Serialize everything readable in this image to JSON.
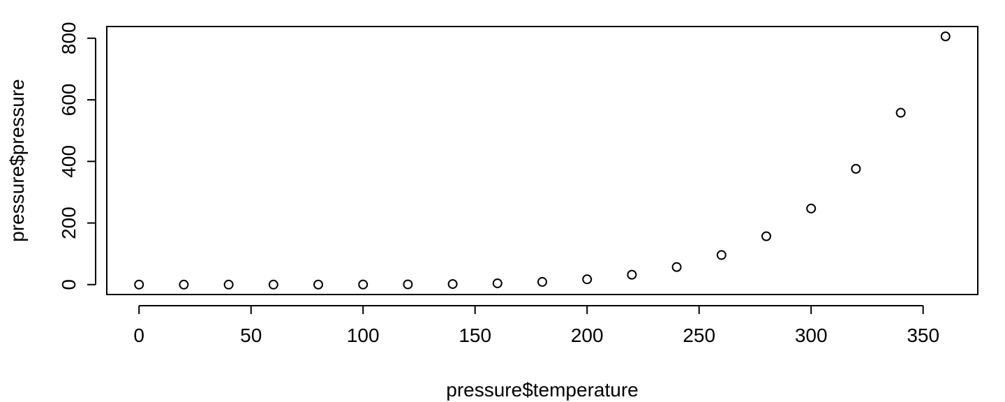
{
  "chart_data": {
    "type": "scatter",
    "title": "",
    "xlabel": "pressure$temperature",
    "ylabel": "pressure$pressure",
    "xlim": [
      -14.4,
      374.4
    ],
    "ylim": [
      -32.2,
      838
    ],
    "xticks": [
      0,
      50,
      100,
      150,
      200,
      250,
      300,
      350
    ],
    "yticks": [
      0,
      200,
      400,
      600,
      800
    ],
    "marker": "open-circle",
    "grid": false,
    "legend": "none",
    "series": [
      {
        "x": [
          0,
          20,
          40,
          60,
          80,
          100,
          120,
          140,
          160,
          180,
          200,
          220,
          240,
          260,
          280,
          300,
          320,
          340,
          360
        ],
        "y": [
          0.0002,
          0.0012,
          0.006,
          0.03,
          0.09,
          0.27,
          0.75,
          1.85,
          4.2,
          8.8,
          17.3,
          32.1,
          57,
          96,
          157,
          247,
          376,
          558,
          806
        ]
      }
    ],
    "colors": {
      "marker": "#000000",
      "axis": "#000000",
      "background": "#ffffff"
    }
  }
}
